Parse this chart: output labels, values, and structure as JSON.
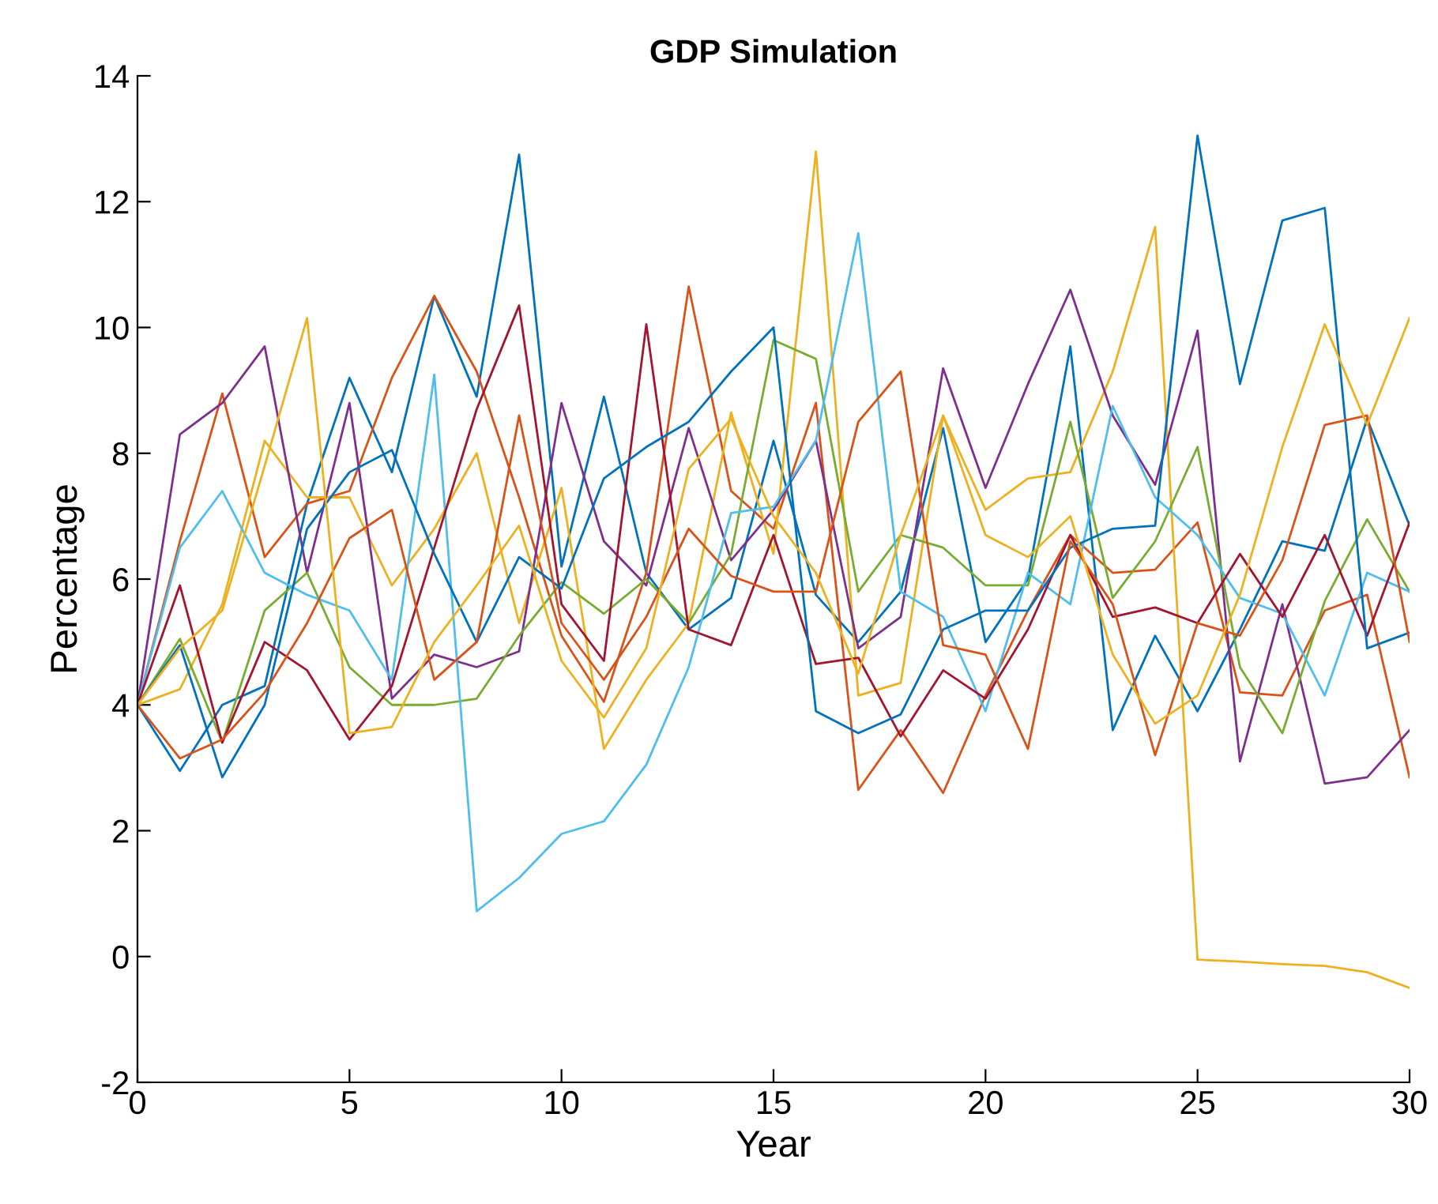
{
  "chart_data": {
    "type": "line",
    "title": "GDP Simulation",
    "xlabel": "Year",
    "ylabel": "Percentage",
    "x": [
      0,
      1,
      2,
      3,
      4,
      5,
      6,
      7,
      8,
      9,
      10,
      11,
      12,
      13,
      14,
      15,
      16,
      17,
      18,
      19,
      20,
      21,
      22,
      23,
      24,
      25,
      26,
      27,
      28,
      29,
      30
    ],
    "xlim": [
      0,
      30
    ],
    "xticks": [
      0,
      5,
      10,
      15,
      20,
      25,
      30
    ],
    "ylim": [
      -2,
      14
    ],
    "yticks": [
      -2,
      0,
      2,
      4,
      6,
      8,
      10,
      12,
      14
    ],
    "grid": false,
    "legend": false,
    "marker": "none",
    "line_style": "solid",
    "series": [
      {
        "color": "#0072bd",
        "values": [
          4,
          2.95,
          4.0,
          4.3,
          7.2,
          9.2,
          7.7,
          10.5,
          8.9,
          12.75,
          6.2,
          8.9,
          6.1,
          5.2,
          5.7,
          8.2,
          5.75,
          5.0,
          5.8,
          8.4,
          5.0,
          6.0,
          9.7,
          3.6,
          5.1,
          3.9,
          5.2,
          6.6,
          6.45,
          8.55,
          6.85
        ]
      },
      {
        "color": "#d95319",
        "values": [
          4,
          6.6,
          8.95,
          6.35,
          7.2,
          7.4,
          9.2,
          10.5,
          9.3,
          7.3,
          5.1,
          4.05,
          6.1,
          10.65,
          7.4,
          6.8,
          8.8,
          2.65,
          3.6,
          2.6,
          4.15,
          5.5,
          6.7,
          6.1,
          6.15,
          6.9,
          4.2,
          4.15,
          5.5,
          5.75,
          2.85
        ]
      },
      {
        "color": "#edb120",
        "values": [
          4,
          4.25,
          5.6,
          8.2,
          7.3,
          7.3,
          5.9,
          6.8,
          8.0,
          5.3,
          7.45,
          3.3,
          4.4,
          5.3,
          8.65,
          6.4,
          12.8,
          4.15,
          4.35,
          8.6,
          7.1,
          7.6,
          7.7,
          9.3,
          11.6,
          -0.05,
          -0.08,
          -0.12,
          -0.15,
          -0.25,
          -0.5
        ]
      },
      {
        "color": "#7e2f8e",
        "values": [
          4,
          8.3,
          8.8,
          9.7,
          6.1,
          8.8,
          4.1,
          4.8,
          4.6,
          4.85,
          8.8,
          6.6,
          5.9,
          8.4,
          6.3,
          7.1,
          8.2,
          4.9,
          5.4,
          9.35,
          7.45,
          9.1,
          10.6,
          8.6,
          7.5,
          9.95,
          3.1,
          5.6,
          2.75,
          2.85,
          3.6
        ]
      },
      {
        "color": "#77ac30",
        "values": [
          4,
          5.05,
          3.4,
          5.5,
          6.1,
          4.6,
          4.0,
          4.0,
          4.1,
          5.1,
          5.95,
          5.45,
          6.0,
          5.3,
          6.4,
          9.8,
          9.5,
          5.8,
          6.7,
          6.5,
          5.9,
          5.9,
          8.5,
          5.7,
          6.6,
          8.1,
          4.6,
          3.55,
          5.65,
          6.95,
          5.8
        ]
      },
      {
        "color": "#4dbeee",
        "values": [
          4,
          6.5,
          7.4,
          6.1,
          5.75,
          5.5,
          4.4,
          9.25,
          0.72,
          1.25,
          1.95,
          2.15,
          3.05,
          4.6,
          7.05,
          7.15,
          8.2,
          11.5,
          5.8,
          5.4,
          3.9,
          6.1,
          5.6,
          8.75,
          7.3,
          6.7,
          5.7,
          5.45,
          4.15,
          6.1,
          5.8
        ]
      },
      {
        "color": "#a2142f",
        "values": [
          4,
          5.9,
          3.4,
          5.0,
          4.55,
          3.45,
          4.3,
          6.5,
          8.7,
          10.35,
          5.6,
          4.7,
          10.05,
          5.2,
          4.95,
          6.7,
          4.65,
          4.75,
          3.5,
          4.55,
          4.1,
          5.2,
          6.7,
          5.4,
          5.55,
          5.3,
          6.4,
          5.4,
          6.7,
          5.1,
          6.9
        ]
      },
      {
        "color": "#0072bd",
        "values": [
          4,
          4.95,
          2.85,
          4.0,
          6.8,
          7.7,
          8.05,
          6.4,
          5.0,
          6.35,
          5.85,
          7.6,
          8.1,
          8.5,
          9.3,
          10.0,
          3.9,
          3.55,
          3.85,
          5.2,
          5.5,
          5.5,
          6.5,
          6.8,
          6.85,
          13.05,
          9.1,
          11.7,
          11.9,
          4.9,
          5.15
        ]
      },
      {
        "color": "#d95319",
        "values": [
          4,
          3.15,
          3.45,
          4.2,
          5.3,
          6.65,
          7.1,
          4.4,
          5.0,
          8.6,
          5.3,
          4.4,
          5.4,
          6.8,
          6.05,
          5.8,
          5.8,
          8.5,
          9.3,
          4.95,
          4.8,
          3.3,
          6.6,
          5.6,
          3.2,
          5.3,
          5.1,
          6.3,
          8.45,
          8.6,
          5.0
        ]
      },
      {
        "color": "#edb120",
        "values": [
          4,
          4.9,
          5.5,
          7.8,
          10.15,
          3.55,
          3.65,
          5.0,
          5.9,
          6.85,
          4.7,
          3.8,
          4.9,
          7.75,
          8.55,
          7.0,
          6.1,
          4.5,
          6.7,
          8.6,
          6.7,
          6.35,
          7.0,
          4.8,
          3.7,
          4.15,
          5.75,
          8.1,
          10.05,
          8.45,
          10.15
        ]
      }
    ]
  }
}
